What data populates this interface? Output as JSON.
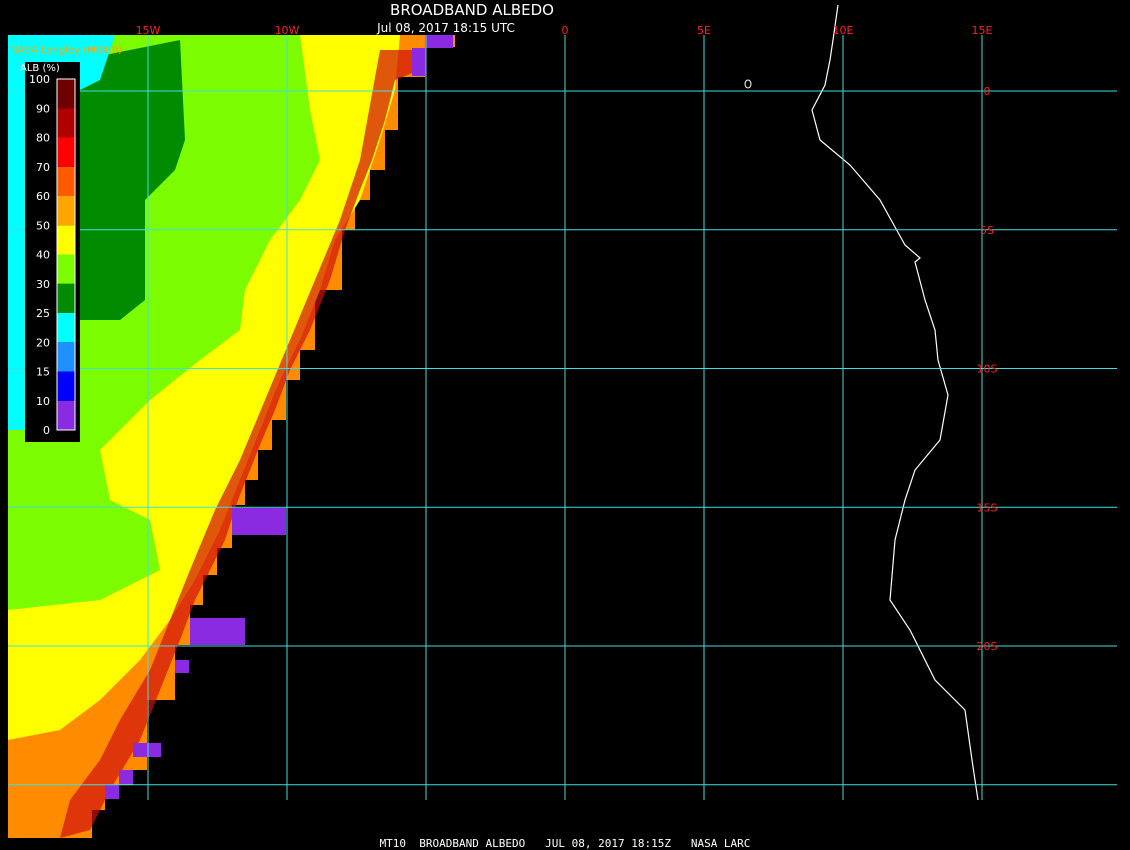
{
  "header": {
    "title": "BROADBAND ALBEDO",
    "timestamp": "Jul 08, 2017 18:15 UTC",
    "source": "NASA Langley (M04.0)"
  },
  "colorbar": {
    "label": "ALB (%)",
    "ticks": [
      0,
      10,
      15,
      20,
      25,
      30,
      40,
      50,
      60,
      70,
      80,
      90,
      100
    ],
    "colors": [
      "#8a2be2",
      "#0000ff",
      "#1e90ff",
      "#00ffff",
      "#008b00",
      "#7cfc00",
      "#ffff00",
      "#ffa500",
      "#ff5a00",
      "#ff0000",
      "#b00000",
      "#700000"
    ]
  },
  "grid": {
    "longitudes": [
      {
        "value": -15,
        "label": "15W"
      },
      {
        "value": -10,
        "label": "10W"
      },
      {
        "value": -5,
        "label": null
      },
      {
        "value": 0,
        "label": "0"
      },
      {
        "value": 5,
        "label": "5E"
      },
      {
        "value": 10,
        "label": "10E"
      },
      {
        "value": 15,
        "label": "15E"
      }
    ],
    "latitudes": [
      {
        "value": 0,
        "label": "0"
      },
      {
        "value": -5,
        "label": "5S"
      },
      {
        "value": -10,
        "label": "10S"
      },
      {
        "value": -15,
        "label": "15S"
      },
      {
        "value": -20,
        "label": "20S"
      },
      {
        "value": -25,
        "label": null
      }
    ]
  },
  "footer": "MT10  BROADBAND ALBEDO   JUL 08, 2017 18:15Z   NASA LARC"
}
